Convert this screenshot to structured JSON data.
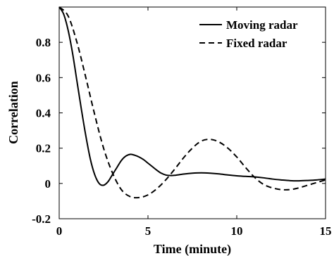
{
  "chart_data": {
    "type": "line",
    "title": "",
    "xlabel": "Time (minute)",
    "ylabel": "Correlation",
    "xlim": [
      0,
      15
    ],
    "ylim": [
      -0.2,
      1.0
    ],
    "xticks": [
      0,
      5,
      10,
      15
    ],
    "xtick_labels": [
      "0",
      "5",
      "10",
      "15"
    ],
    "yticks": [
      -0.2,
      0,
      0.2,
      0.4,
      0.6,
      0.8
    ],
    "ytick_labels": [
      "-0.2",
      "0",
      "0.2",
      "0.4",
      "0.6",
      "0.8"
    ],
    "grid": false,
    "legend_position": "top-right",
    "series": [
      {
        "name": "Moving radar",
        "style": "solid",
        "color": "#000000",
        "x": [
          0,
          0.25,
          0.5,
          0.75,
          1.0,
          1.25,
          1.5,
          1.75,
          2.0,
          2.25,
          2.5,
          2.75,
          3.0,
          3.25,
          3.5,
          3.75,
          4.0,
          4.25,
          4.5,
          4.75,
          5.0,
          5.25,
          5.5,
          5.75,
          6.0,
          6.25,
          6.5,
          7.0,
          7.5,
          8.0,
          8.5,
          9.0,
          9.5,
          10.0,
          10.5,
          11.0,
          11.5,
          12.0,
          12.5,
          13.0,
          13.5,
          14.0,
          14.5,
          15.0
        ],
        "values": [
          1.0,
          0.96,
          0.87,
          0.74,
          0.58,
          0.42,
          0.27,
          0.14,
          0.05,
          0.0,
          -0.01,
          0.01,
          0.05,
          0.09,
          0.13,
          0.155,
          0.165,
          0.16,
          0.15,
          0.135,
          0.115,
          0.095,
          0.075,
          0.058,
          0.048,
          0.045,
          0.046,
          0.053,
          0.058,
          0.06,
          0.058,
          0.054,
          0.048,
          0.043,
          0.04,
          0.037,
          0.032,
          0.025,
          0.02,
          0.016,
          0.015,
          0.017,
          0.02,
          0.025
        ]
      },
      {
        "name": "Fixed radar",
        "style": "dashed",
        "color": "#000000",
        "x": [
          0,
          0.5,
          1.0,
          1.5,
          2.0,
          2.5,
          3.0,
          3.5,
          4.0,
          4.5,
          5.0,
          5.5,
          6.0,
          6.5,
          7.0,
          7.5,
          8.0,
          8.5,
          9.0,
          9.5,
          10.0,
          10.5,
          11.0,
          11.5,
          12.0,
          12.5,
          13.0,
          13.5,
          14.0,
          14.5,
          15.0
        ],
        "values": [
          1.0,
          0.95,
          0.8,
          0.6,
          0.39,
          0.2,
          0.06,
          -0.035,
          -0.075,
          -0.08,
          -0.065,
          -0.03,
          0.02,
          0.08,
          0.145,
          0.2,
          0.24,
          0.25,
          0.235,
          0.2,
          0.15,
          0.09,
          0.035,
          -0.005,
          -0.025,
          -0.035,
          -0.035,
          -0.025,
          -0.01,
          0.005,
          0.02
        ]
      }
    ]
  }
}
